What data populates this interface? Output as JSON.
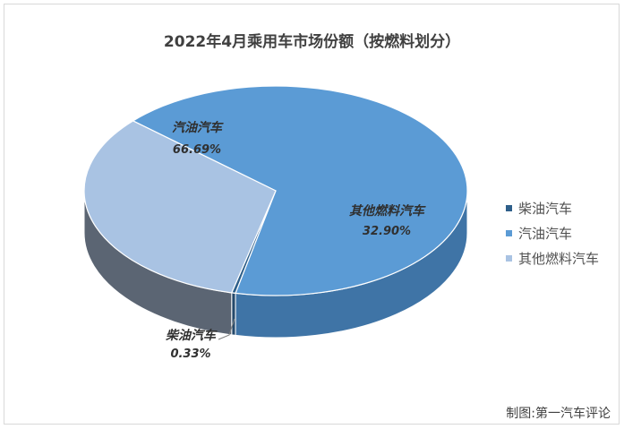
{
  "chart_data": {
    "type": "pie",
    "title": "2022年4月乘用车市场份额（按燃料划分）",
    "slices": [
      {
        "name": "柴油汽车",
        "value": 0.33,
        "label": "0.33%",
        "color": "#2e5f8a",
        "side_color": "#24496b"
      },
      {
        "name": "汽油汽车",
        "value": 66.69,
        "label": "66.69%",
        "color": "#5b9bd5",
        "side_color": "#3f74a6"
      },
      {
        "name": "其他燃料汽车",
        "value": 32.9,
        "label": "32.90%",
        "color": "#a9c3e3",
        "side_color": "#5b6573"
      }
    ],
    "legend_position": "right",
    "three_d": true
  },
  "source_note": "制图:第一汽车评论"
}
